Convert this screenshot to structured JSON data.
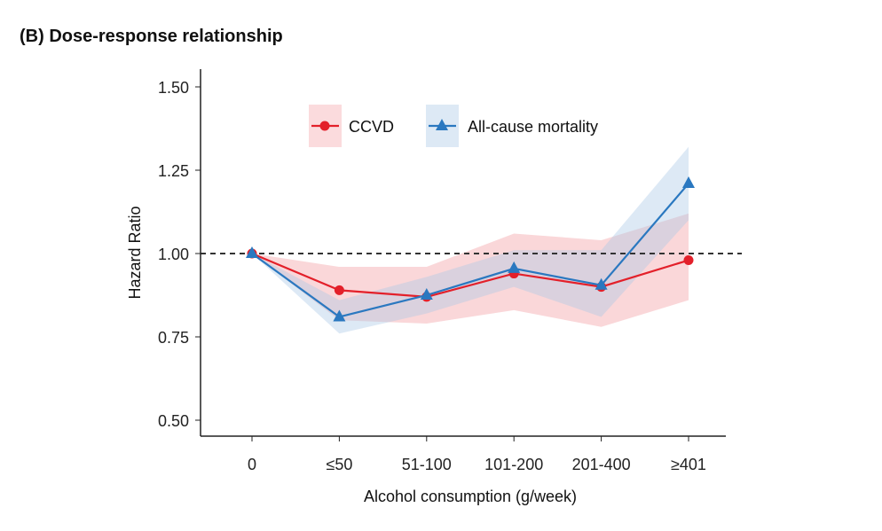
{
  "chart_data": {
    "type": "line",
    "title": "(B) Dose-response relationship",
    "xlabel": "Alcohol consumption (g/week)",
    "ylabel": "Hazard Ratio",
    "categories": [
      "0",
      "≤50",
      "51-100",
      "101-200",
      "201-400",
      "≥401"
    ],
    "ylim": [
      0.5,
      1.5
    ],
    "yticks": [
      "0.50",
      "0.75",
      "1.00",
      "1.25",
      "1.50"
    ],
    "ytick_values": [
      0.5,
      0.75,
      1.0,
      1.25,
      1.5
    ],
    "reference_line": 1.0,
    "grid": false,
    "legend_position": "top-center",
    "series": [
      {
        "name": "CCVD",
        "color": "#e3202a",
        "band_color": "#f4a6aa",
        "marker": "circle",
        "values": [
          1.0,
          0.89,
          0.87,
          0.94,
          0.9,
          0.98
        ],
        "lower": [
          1.0,
          0.8,
          0.79,
          0.83,
          0.78,
          0.86
        ],
        "upper": [
          1.0,
          0.96,
          0.96,
          1.06,
          1.04,
          1.12
        ]
      },
      {
        "name": "All-cause mortality",
        "color": "#2a78c0",
        "band_color": "#a9c9e6",
        "marker": "triangle",
        "values": [
          1.0,
          0.81,
          0.875,
          0.955,
          0.905,
          1.21
        ],
        "lower": [
          1.0,
          0.76,
          0.82,
          0.9,
          0.81,
          1.1
        ],
        "upper": [
          1.0,
          0.86,
          0.93,
          1.01,
          1.01,
          1.32
        ]
      }
    ]
  }
}
